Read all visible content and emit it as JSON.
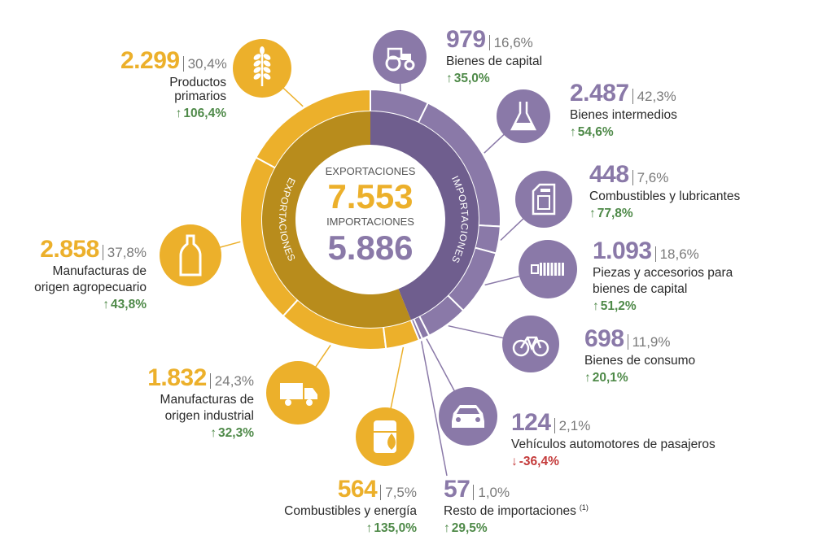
{
  "colors": {
    "exports": "#ecb02b",
    "imports": "#8a79a8",
    "exports_dark": "#b88c1c",
    "imports_dark": "#6f5e8e",
    "up": "#4f8a49",
    "down": "#c43a3a",
    "text": "#2a2a2a"
  },
  "center": {
    "exports_label": "EXPORTACIONES",
    "exports_total": "7.553",
    "imports_label": "IMPORTACIONES",
    "imports_total": "5.886"
  },
  "ring_labels": {
    "left": "EXPORTACIONES",
    "right": "IMPORTACIONES"
  },
  "chart_data": {
    "type": "pie",
    "series": [
      {
        "name": "EXPORTACIONES",
        "total": 7553,
        "slices": [
          {
            "label": "Productos primarios",
            "value": 2299,
            "value_text": "2.299",
            "share_text": "30,4%",
            "change_text": "106,4%",
            "direction": "up",
            "icon": "wheat-icon"
          },
          {
            "label": "Manufacturas de origen agropecuario",
            "label_lines": [
              "Manufacturas de",
              "origen agropecuario"
            ],
            "value": 2858,
            "value_text": "2.858",
            "share_text": "37,8%",
            "change_text": "43,8%",
            "direction": "up",
            "icon": "bottle-icon"
          },
          {
            "label": "Manufacturas de origen industrial",
            "label_lines": [
              "Manufacturas de",
              "origen industrial"
            ],
            "value": 1832,
            "value_text": "1.832",
            "share_text": "24,3%",
            "change_text": "32,3%",
            "direction": "up",
            "icon": "truck-icon"
          },
          {
            "label": "Combustibles y energía",
            "value": 564,
            "value_text": "564",
            "share_text": "7,5%",
            "change_text": "135,0%",
            "direction": "up",
            "icon": "oil-barrel-icon"
          }
        ]
      },
      {
        "name": "IMPORTACIONES",
        "total": 5886,
        "slices": [
          {
            "label": "Bienes de capital",
            "value": 979,
            "value_text": "979",
            "share_text": "16,6%",
            "change_text": "35,0%",
            "direction": "up",
            "icon": "tractor-icon"
          },
          {
            "label": "Bienes intermedios",
            "value": 2487,
            "value_text": "2.487",
            "share_text": "42,3%",
            "change_text": "54,6%",
            "direction": "up",
            "icon": "flask-icon"
          },
          {
            "label": "Combustibles y lubricantes",
            "value": 448,
            "value_text": "448",
            "share_text": "7,6%",
            "change_text": "77,8%",
            "direction": "up",
            "icon": "jerrycan-icon"
          },
          {
            "label": "Piezas y accesorios para bienes de capital",
            "label_lines": [
              "Piezas y accesorios para",
              "bienes de capital"
            ],
            "value": 1093,
            "value_text": "1.093",
            "share_text": "18,6%",
            "change_text": "51,2%",
            "direction": "up",
            "icon": "bolt-icon"
          },
          {
            "label": "Bienes de consumo",
            "value": 698,
            "value_text": "698",
            "share_text": "11,9%",
            "change_text": "20,1%",
            "direction": "up",
            "icon": "bicycle-icon"
          },
          {
            "label": "Vehículos automotores de pasajeros",
            "value": 124,
            "value_text": "124",
            "share_text": "2,1%",
            "change_text": "-36,4%",
            "direction": "down",
            "icon": "car-icon"
          },
          {
            "label": "Resto de importaciones",
            "footnote": "(1)",
            "value": 57,
            "value_text": "57",
            "share_text": "1,0%",
            "change_text": "29,5%",
            "direction": "up",
            "icon": ""
          }
        ]
      }
    ]
  }
}
